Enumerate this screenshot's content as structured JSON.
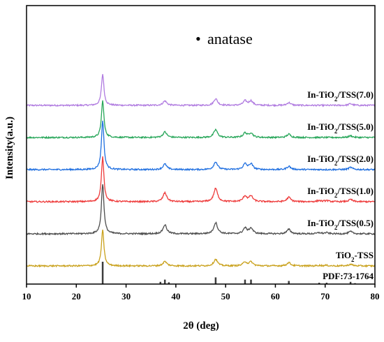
{
  "chart_data": {
    "type": "line",
    "title": "",
    "xlabel": "2θ (deg)",
    "ylabel": "Intensity(a.u.)",
    "xlim": [
      10,
      80
    ],
    "x_ticks": [
      10,
      20,
      30,
      40,
      50,
      60,
      70,
      80
    ],
    "y_ticks_shown": false,
    "grid": false,
    "legend": "none",
    "annotation": {
      "marker": "•",
      "text": "anatase"
    },
    "peak_positions": [
      25.3,
      37.8,
      48.0,
      53.9,
      55.1,
      62.7,
      68.8,
      70.3,
      75.1
    ],
    "series": [
      {
        "name": "In-TiO2/TSS(7.0)",
        "label_main": "In-TiO",
        "label_sub": "2",
        "label_rest": "/TSS(7.0)",
        "color": "#b07be0",
        "offset": 6,
        "peak_heights": [
          28,
          4,
          6,
          4,
          4,
          2.5,
          0,
          0,
          1.5
        ]
      },
      {
        "name": "In-TiO2/TSS(5.0)",
        "label_main": "In-TiO",
        "label_sub": "2",
        "label_rest": "/TSS(5.0)",
        "color": "#27a659",
        "offset": 5,
        "peak_heights": [
          33,
          5,
          7,
          4,
          4,
          3,
          0,
          0,
          1.5
        ]
      },
      {
        "name": "In-TiO2/TSS(2.0)",
        "label_main": "In-TiO",
        "label_sub": "2",
        "label_rest": "/TSS(2.0)",
        "color": "#1f6fe0",
        "offset": 4,
        "peak_heights": [
          44,
          5,
          7,
          5,
          5,
          3,
          0,
          0,
          2
        ]
      },
      {
        "name": "In-TiO2/TSS(1.0)",
        "label_main": "In-TiO",
        "label_sub": "2",
        "label_rest": "/TSS(1.0)",
        "color": "#ee3b3b",
        "offset": 3,
        "peak_heights": [
          40,
          8,
          12,
          5,
          5,
          4,
          1,
          1,
          2
        ]
      },
      {
        "name": "In-TiO2/TSS(0.5)",
        "label_main": "In-TiO",
        "label_sub": "2",
        "label_rest": "/TSS(0.5)",
        "color": "#4d4d4d",
        "offset": 2,
        "peak_heights": [
          45,
          8,
          10,
          5,
          5,
          4,
          1,
          1,
          2
        ]
      },
      {
        "name": "TiO2-TSS",
        "label_main": "TiO",
        "label_sub": "2",
        "label_rest": "-TSS",
        "color": "#c9a11c",
        "offset": 1,
        "peak_heights": [
          32,
          4,
          6,
          3.5,
          3.5,
          3,
          0.5,
          0.5,
          1.5
        ]
      }
    ],
    "reference": {
      "name": "PDF:73-1764",
      "color": "#3c3c3c",
      "sticks": [
        {
          "x": 25.3,
          "h": 100
        },
        {
          "x": 36.9,
          "h": 10
        },
        {
          "x": 37.8,
          "h": 20
        },
        {
          "x": 38.6,
          "h": 8
        },
        {
          "x": 48.0,
          "h": 30
        },
        {
          "x": 53.9,
          "h": 20
        },
        {
          "x": 55.1,
          "h": 20
        },
        {
          "x": 62.7,
          "h": 14
        },
        {
          "x": 68.8,
          "h": 6
        },
        {
          "x": 70.3,
          "h": 6
        },
        {
          "x": 75.1,
          "h": 10
        },
        {
          "x": 76.0,
          "h": 4
        }
      ]
    }
  }
}
